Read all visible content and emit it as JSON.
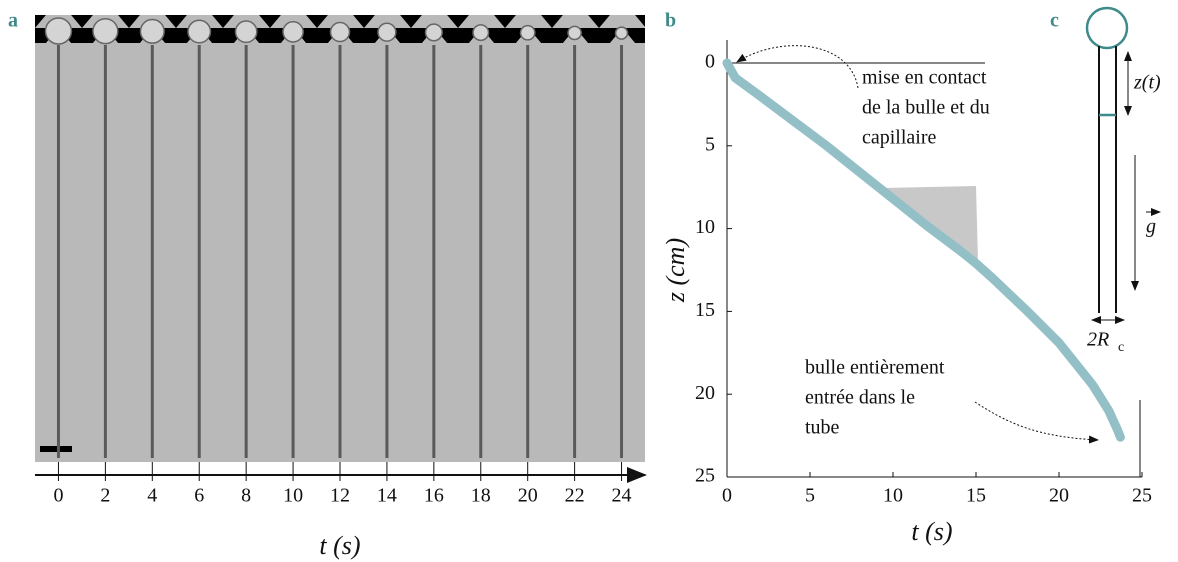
{
  "chart_data": [
    {
      "type": "strip",
      "panel_label": "a",
      "x_label": "t (s)",
      "xlim": [
        -1,
        25
      ],
      "xticks": [
        0,
        2,
        4,
        6,
        8,
        10,
        12,
        14,
        16,
        18,
        20,
        22,
        24
      ]
    },
    {
      "type": "line",
      "panel_label": "b",
      "x_label": "t (s)",
      "y_label": "z (cm)",
      "x": [
        0,
        0.5,
        2,
        4,
        6,
        8,
        10,
        12,
        14,
        15,
        16,
        18,
        20,
        22,
        23,
        23.5,
        23.7
      ],
      "values": [
        0,
        0.9,
        2.0,
        3.5,
        5.0,
        6.6,
        8.2,
        9.8,
        11.3,
        12.1,
        13.0,
        14.9,
        16.9,
        19.4,
        21.0,
        22.1,
        22.6
      ],
      "color": "#93c0c6",
      "xlim": [
        0,
        25
      ],
      "ylim": [
        0,
        25
      ],
      "y_inverted": true,
      "xticks": [
        0,
        5,
        10,
        15,
        20,
        25
      ],
      "yticks": [
        0,
        5,
        10,
        15,
        20,
        25
      ],
      "annotations": [
        [
          "mise en contact",
          "de la bulle et du",
          "capillaire"
        ],
        [
          "bulle entièrement",
          "entrée dans le",
          "tube"
        ]
      ]
    }
  ],
  "diagram": {
    "panel_label": "c",
    "z_label": "z(t)",
    "g_label": "g",
    "width_label": "2R",
    "width_subscript": "c"
  }
}
